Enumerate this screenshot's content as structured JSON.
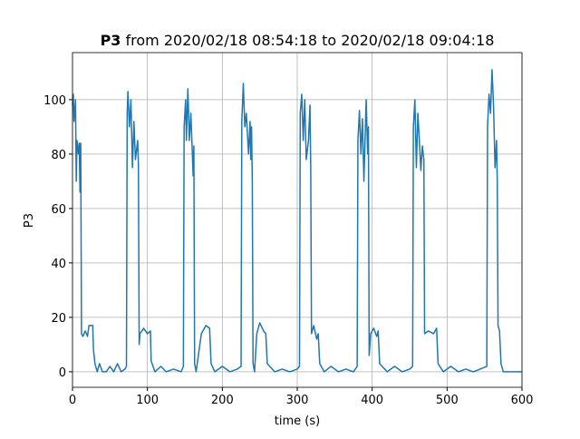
{
  "chart_data": {
    "type": "line",
    "title": {
      "name": "P3",
      "text": "from 2020/02/18 08:54:18 to 2020/02/18 09:04:18"
    },
    "xlabel": "time (s)",
    "ylabel": "P3",
    "color": "#1f77b4",
    "grid": true,
    "xlim": [
      0,
      600
    ],
    "ylim": [
      -5.7,
      117.3
    ],
    "xticks": [
      0,
      100,
      200,
      300,
      400,
      500,
      600
    ],
    "yticks": [
      0,
      20,
      40,
      60,
      80,
      100
    ],
    "x": [
      0,
      1,
      2,
      4,
      5,
      6,
      8,
      9,
      10,
      11,
      12,
      14,
      17,
      20,
      22,
      27,
      28,
      30,
      33,
      36,
      40,
      45,
      50,
      55,
      60,
      65,
      70,
      72,
      73,
      74,
      76,
      78,
      80,
      82,
      84,
      87,
      88,
      89,
      90,
      95,
      100,
      104,
      105,
      110,
      118,
      125,
      135,
      145,
      148,
      149,
      151,
      152,
      154,
      156,
      158,
      160,
      161,
      162,
      163,
      165,
      170,
      172,
      178,
      183,
      185,
      190,
      200,
      210,
      220,
      225,
      226,
      228,
      230,
      232,
      235,
      237,
      238,
      239,
      240,
      241,
      243,
      246,
      250,
      255,
      258,
      260,
      270,
      280,
      290,
      300,
      303,
      304,
      306,
      308,
      310,
      312,
      315,
      317,
      318,
      319,
      322,
      326,
      328,
      330,
      336,
      345,
      355,
      365,
      375,
      380,
      381,
      383,
      385,
      387,
      389,
      392,
      394,
      395,
      396,
      398,
      402,
      406,
      408,
      410,
      420,
      430,
      440,
      450,
      454,
      455,
      457,
      459,
      461,
      463,
      465,
      467,
      469,
      470,
      475,
      482,
      486,
      488,
      495,
      505,
      515,
      525,
      535,
      553,
      554,
      556,
      558,
      560,
      562,
      564,
      566,
      567,
      568,
      570,
      572,
      575,
      600
    ],
    "values": [
      98,
      102,
      92,
      100,
      70,
      85,
      80,
      84,
      66,
      84,
      14,
      13,
      15,
      13,
      17,
      17,
      8,
      3,
      0,
      3,
      0,
      0,
      2,
      0,
      3,
      0,
      1,
      2,
      95,
      103,
      90,
      100,
      75,
      92,
      78,
      85,
      76,
      10,
      14,
      16,
      14,
      15,
      4,
      0,
      2,
      0,
      1,
      0,
      2,
      90,
      100,
      85,
      104,
      85,
      95,
      80,
      72,
      83,
      3,
      0,
      10,
      14,
      17,
      16,
      3,
      0,
      2,
      0,
      1,
      2,
      92,
      106,
      90,
      95,
      80,
      92,
      78,
      90,
      70,
      3,
      0,
      14,
      18,
      15,
      14,
      3,
      0,
      1,
      0,
      1,
      2,
      95,
      102,
      85,
      100,
      78,
      85,
      98,
      75,
      14,
      17,
      12,
      14,
      3,
      0,
      2,
      0,
      1,
      0,
      2,
      85,
      96,
      80,
      93,
      70,
      100,
      80,
      90,
      6,
      14,
      16,
      13,
      15,
      3,
      0,
      2,
      0,
      1,
      2,
      90,
      100,
      75,
      95,
      85,
      74,
      83,
      78,
      14,
      15,
      14,
      16,
      3,
      0,
      2,
      0,
      1,
      0,
      2,
      90,
      102,
      95,
      111,
      98,
      75,
      85,
      70,
      17,
      15,
      3,
      0,
      0
    ]
  }
}
